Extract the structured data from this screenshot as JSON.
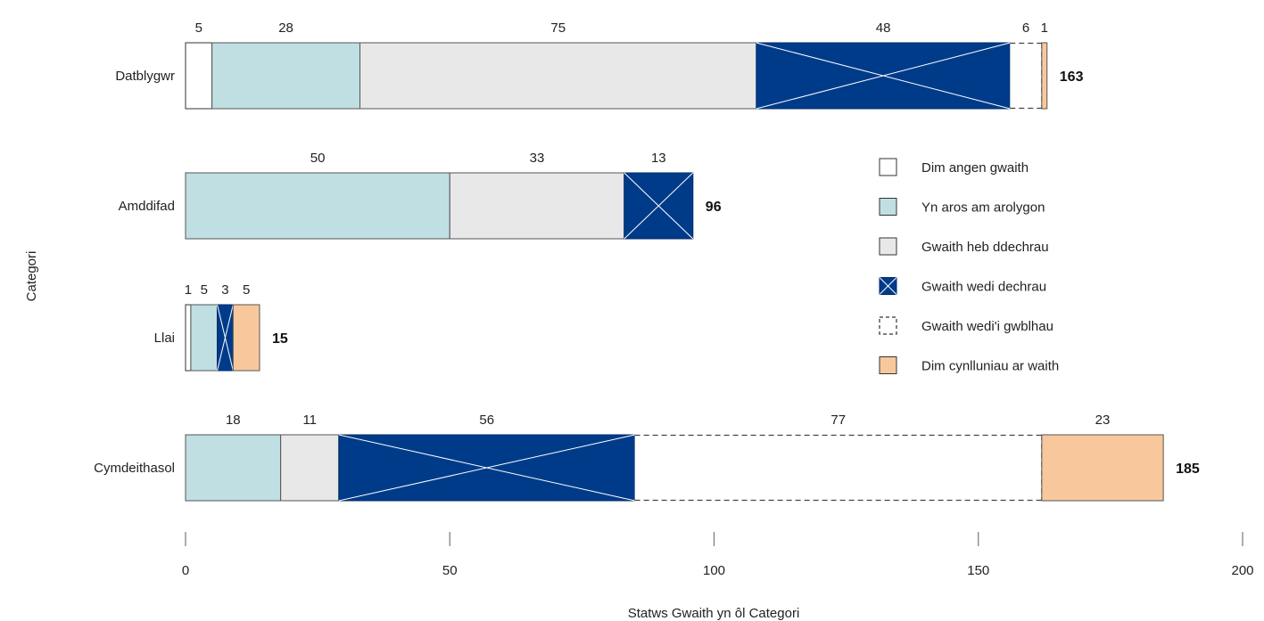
{
  "chart_data": {
    "type": "bar",
    "orientation": "horizontal",
    "stacked": true,
    "xlabel": "Statws Gwaith yn ôl Categori",
    "ylabel": "Categori",
    "xlim": [
      0,
      200
    ],
    "xticks": [
      0,
      50,
      100,
      150,
      200
    ],
    "grid": false,
    "legend_position": "right",
    "categories": [
      "Datblygwr",
      "Amddifad",
      "Llai",
      "Cymdeithasol"
    ],
    "totals": [
      163,
      96,
      15,
      185
    ],
    "series": [
      {
        "name": "Dim angen gwaith",
        "key": "none_needed",
        "color": "#ffffff",
        "values": [
          5,
          0,
          1,
          0
        ]
      },
      {
        "name": "Yn aros am arolygon",
        "key": "awaiting",
        "color": "#bfdfe3",
        "values": [
          28,
          50,
          5,
          18
        ]
      },
      {
        "name": "Gwaith heb ddechrau",
        "key": "not_started",
        "color": "#e8e8e8",
        "values": [
          75,
          33,
          0,
          11
        ]
      },
      {
        "name": "Gwaith wedi dechrau",
        "key": "started",
        "color": "#003b8a",
        "values": [
          48,
          13,
          3,
          56
        ]
      },
      {
        "name": "Gwaith wedi'i gwblhau",
        "key": "completed",
        "color": "#ffffff",
        "values": [
          6,
          0,
          0,
          77
        ]
      },
      {
        "name": "Dim cynlluniau ar waith",
        "key": "no_plans",
        "color": "#f8c89c",
        "values": [
          1,
          0,
          5,
          23
        ]
      }
    ]
  }
}
